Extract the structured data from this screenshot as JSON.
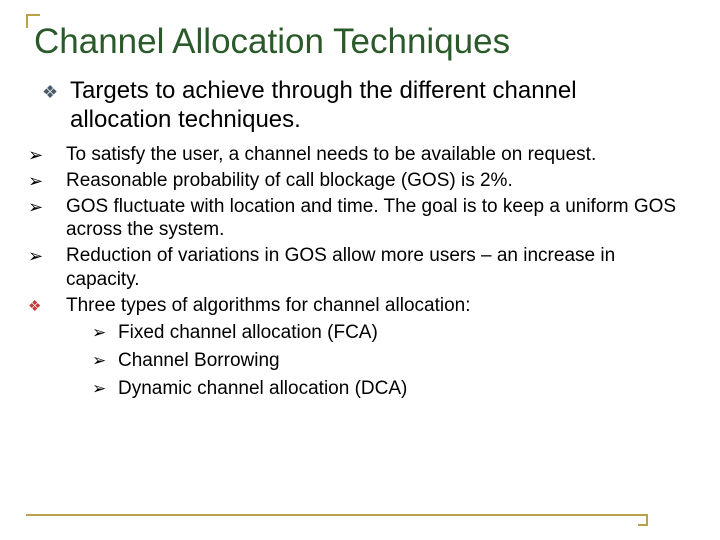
{
  "colors": {
    "title": "#2a5a2a",
    "body": "#000000",
    "accent": "#b9a34a",
    "diamond_red": "#c73838",
    "diamond_dark": "#4a5a6a"
  },
  "title_fontsize": 35,
  "intro_fontsize": 24,
  "body_fontsize": 19,
  "title": "Channel Allocation Techniques",
  "intro": {
    "bullet": "❖",
    "bullet_color": "#4a5a6a",
    "text": "Targets to achieve through the different channel allocation techniques."
  },
  "points": [
    {
      "bullet": "➢",
      "text": "To satisfy the user, a channel needs to be available on request."
    },
    {
      "bullet": "➢",
      "text": "Reasonable probability of call blockage (GOS) is 2%."
    },
    {
      "bullet": "➢",
      "text": "GOS fluctuate with location and time. The goal is to keep a uniform GOS across the system."
    },
    {
      "bullet": "➢",
      "text": "Reduction of variations in GOS allow more users – an increase in capacity."
    }
  ],
  "algos_intro": {
    "bullet": "❖",
    "bullet_color": "#c73838",
    "text": "Three types of algorithms for channel allocation:"
  },
  "algos": [
    {
      "bullet": "➢",
      "text": "Fixed channel allocation (FCA)"
    },
    {
      "bullet": "➢",
      "text": "Channel Borrowing"
    },
    {
      "bullet": "➢",
      "text": "Dynamic channel allocation (DCA)"
    }
  ]
}
